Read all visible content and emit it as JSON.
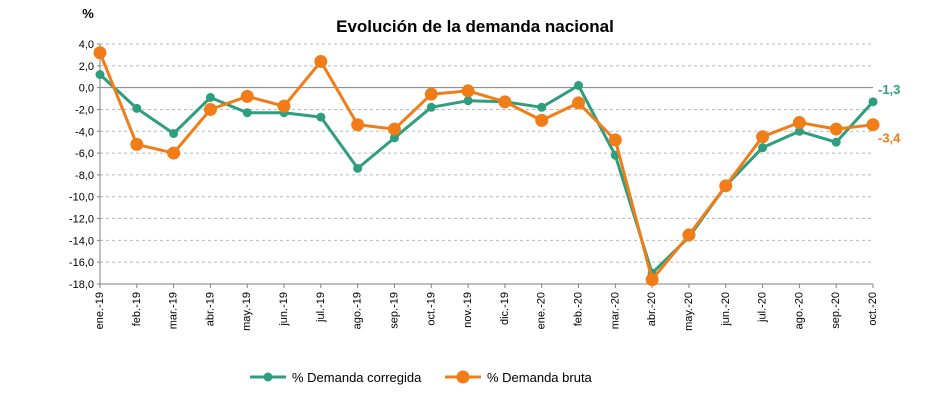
{
  "chart_data": {
    "type": "line",
    "title": "Evolución de la demanda nacional",
    "ylabel": "%",
    "ylim": [
      -18,
      4
    ],
    "ystep": 2,
    "grid": true,
    "legend_position": "bottom",
    "y_tick_labels": [
      "4,0",
      "2,0",
      "0,0",
      "-2,0",
      "-4,0",
      "-6,0",
      "-8,0",
      "-10,0",
      "-12,0",
      "-14,0",
      "-16,0",
      "-18,0"
    ],
    "categories": [
      "ene.-19",
      "feb.-19",
      "mar.-19",
      "abr.-19",
      "may.-19",
      "jun.-19",
      "jul.-19",
      "ago.-19",
      "sep.-19",
      "oct.-19",
      "nov.-19",
      "dic.-19",
      "ene.-20",
      "feb.-20",
      "mar.-20",
      "abr.-20",
      "may.-20",
      "jun.-20",
      "jul.-20",
      "ago.-20",
      "sep.-20",
      "oct.-20"
    ],
    "series": [
      {
        "name": "% Demanda corregida",
        "color": "#2e9e7e",
        "values": [
          1.2,
          -1.9,
          -4.2,
          -0.9,
          -2.3,
          -2.3,
          -2.7,
          -7.4,
          -4.6,
          -1.8,
          -1.2,
          -1.3,
          -1.8,
          0.2,
          -6.2,
          -17.0,
          -13.7,
          -9.0,
          -5.5,
          -4.0,
          -5.0,
          -1.3
        ],
        "end_label": "-1,3"
      },
      {
        "name": "% Demanda bruta",
        "color": "#f07d18",
        "values": [
          3.2,
          -5.2,
          -6.0,
          -2.0,
          -0.8,
          -1.7,
          2.4,
          -3.4,
          -3.8,
          -0.6,
          -0.3,
          -1.3,
          -3.0,
          -1.4,
          -4.8,
          -17.6,
          -13.5,
          -9.0,
          -4.5,
          -3.2,
          -3.8,
          -3.4
        ],
        "end_label": "-3,4"
      }
    ]
  }
}
